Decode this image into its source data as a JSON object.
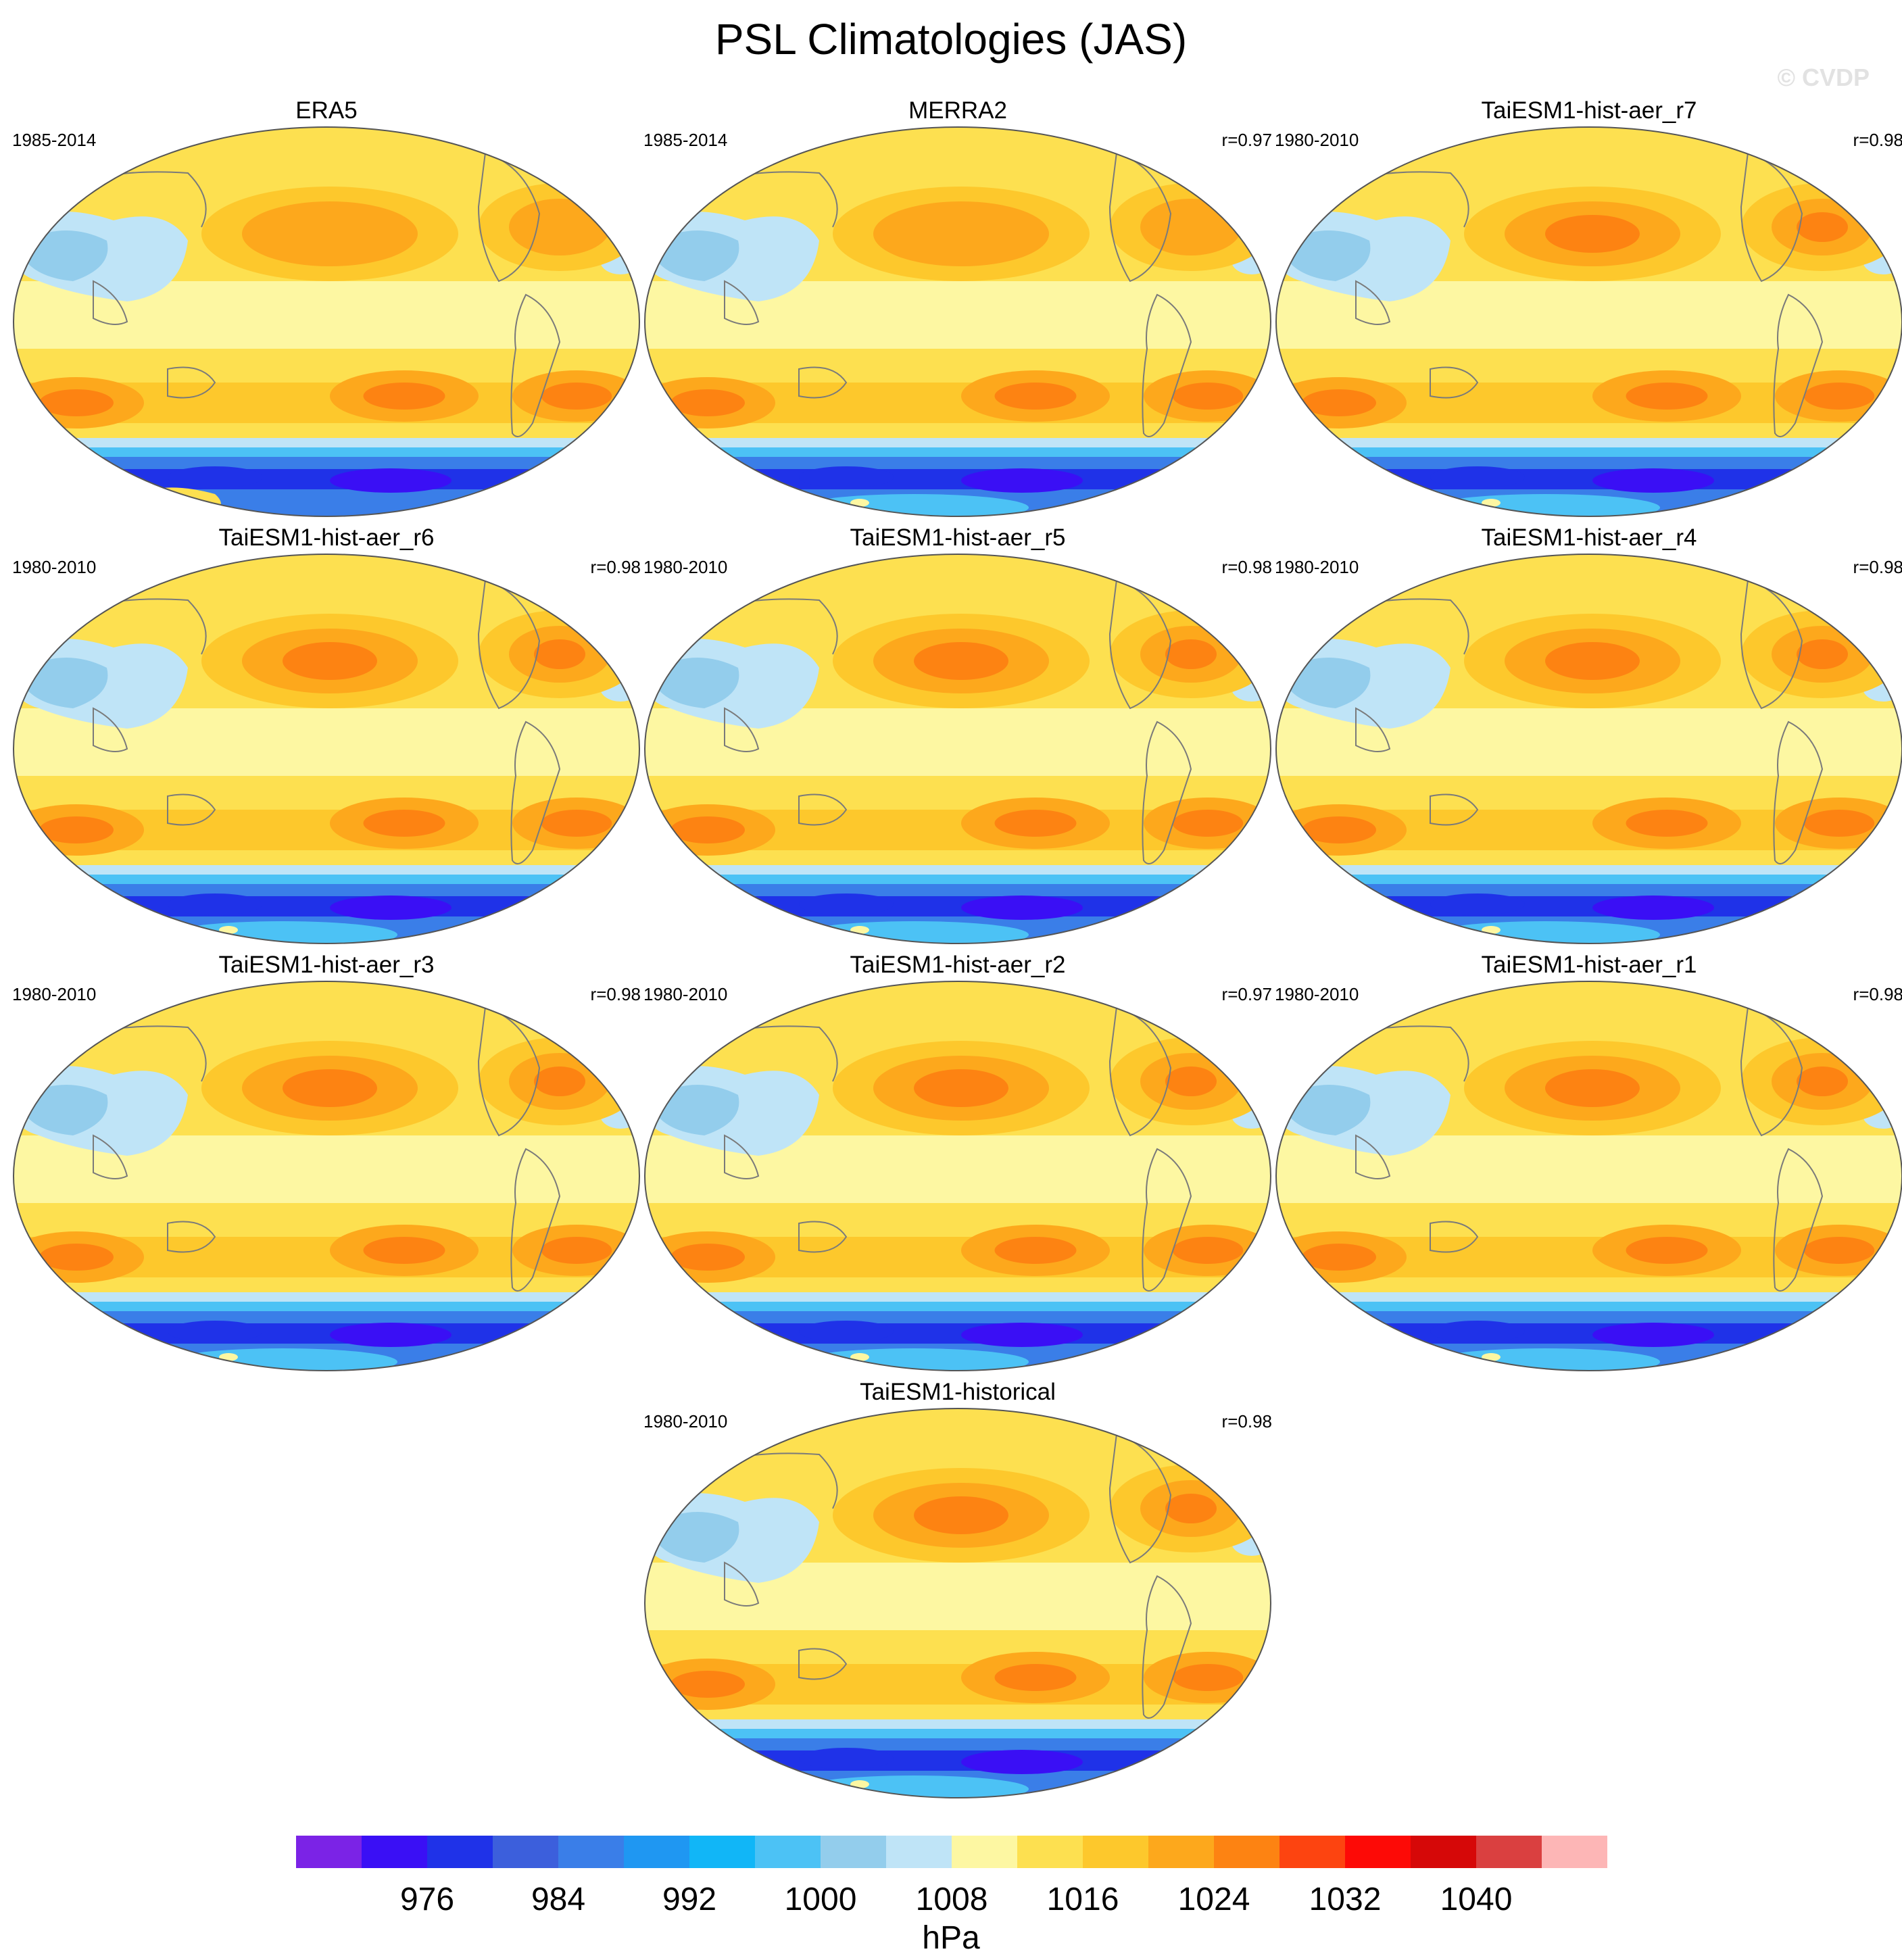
{
  "title": "PSL Climatologies (JAS)",
  "watermark": "© CVDP",
  "panels": [
    {
      "title": "ERA5",
      "period": "1985-2014",
      "corr": ""
    },
    {
      "title": "MERRA2",
      "period": "1985-2014",
      "corr": "r=0.97"
    },
    {
      "title": "TaiESM1-hist-aer_r7",
      "period": "1980-2010",
      "corr": "r=0.98"
    },
    {
      "title": "TaiESM1-hist-aer_r6",
      "period": "1980-2010",
      "corr": "r=0.98"
    },
    {
      "title": "TaiESM1-hist-aer_r5",
      "period": "1980-2010",
      "corr": "r=0.98"
    },
    {
      "title": "TaiESM1-hist-aer_r4",
      "period": "1980-2010",
      "corr": "r=0.98"
    },
    {
      "title": "TaiESM1-hist-aer_r3",
      "period": "1980-2010",
      "corr": "r=0.98"
    },
    {
      "title": "TaiESM1-hist-aer_r2",
      "period": "1980-2010",
      "corr": "r=0.97"
    },
    {
      "title": "TaiESM1-hist-aer_r1",
      "period": "1980-2010",
      "corr": "r=0.98"
    },
    {
      "title": "TaiESM1-historical",
      "period": "1980-2010",
      "corr": "r=0.98"
    }
  ],
  "colorbar": {
    "units": "hPa",
    "colors": [
      "#7b23e6",
      "#3a0ff5",
      "#1f32e8",
      "#3c5fdc",
      "#3a7ee8",
      "#1f97f2",
      "#11b6f7",
      "#4cc2f5",
      "#93cdec",
      "#bfe4f7",
      "#fdf7a2",
      "#fde050",
      "#fdc82c",
      "#fda81c",
      "#fd8312",
      "#fd4410",
      "#fd0a06",
      "#d60808",
      "#da4040",
      "#fdb6b6"
    ],
    "labels": [
      "976",
      "984",
      "992",
      "1000",
      "1008",
      "1016",
      "1024",
      "1032",
      "1040"
    ]
  }
}
